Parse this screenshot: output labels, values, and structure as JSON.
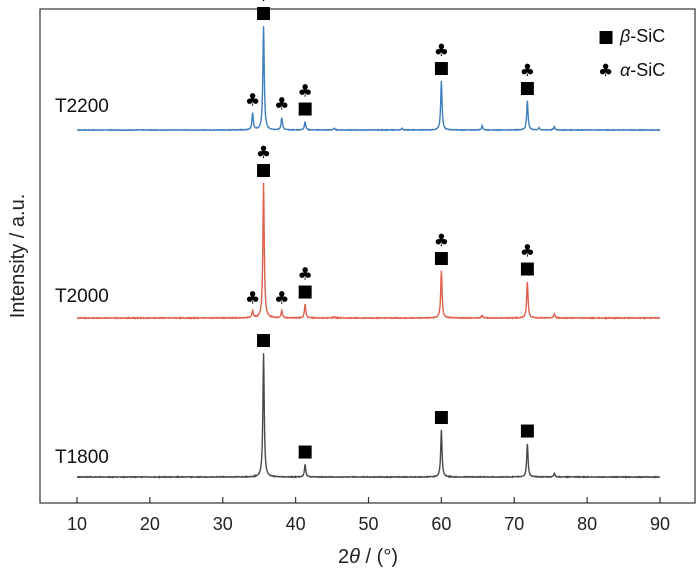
{
  "chart_data": {
    "type": "line",
    "xlabel_prefix": "2",
    "xlabel_theta": "θ",
    "xlabel_suffix": " / (°)",
    "ylabel": "Intensity / a.u.",
    "xlim": [
      10,
      90
    ],
    "xticks": [
      10,
      20,
      30,
      40,
      50,
      60,
      70,
      80,
      90
    ],
    "legend": {
      "position": "top-right",
      "entries": [
        {
          "symbol": "■",
          "greek": "β",
          "text": "-SiC"
        },
        {
          "symbol": "♣",
          "greek": "α",
          "text": "-SiC"
        }
      ]
    },
    "series": [
      {
        "name": "T2200",
        "color": "#3f7fbf",
        "peaks": [
          {
            "x": 34.1,
            "h": 0.16,
            "markers": "♣"
          },
          {
            "x": 35.6,
            "h": 1.0,
            "markers": "■♣"
          },
          {
            "x": 38.1,
            "h": 0.12,
            "markers": "♣"
          },
          {
            "x": 41.3,
            "h": 0.08,
            "markers": "■♣"
          },
          {
            "x": 45.3,
            "h": 0.015,
            "markers": ""
          },
          {
            "x": 54.6,
            "h": 0.015,
            "markers": ""
          },
          {
            "x": 60.0,
            "h": 0.47,
            "markers": "■♣"
          },
          {
            "x": 65.6,
            "h": 0.04,
            "markers": ""
          },
          {
            "x": 71.8,
            "h": 0.28,
            "markers": "■♣"
          },
          {
            "x": 73.4,
            "h": 0.02,
            "markers": ""
          },
          {
            "x": 75.5,
            "h": 0.03,
            "markers": ""
          }
        ]
      },
      {
        "name": "T2000",
        "color": "#e0604c",
        "peaks": [
          {
            "x": 34.1,
            "h": 0.05,
            "markers": "♣"
          },
          {
            "x": 35.6,
            "h": 1.0,
            "markers": "■♣"
          },
          {
            "x": 38.1,
            "h": 0.05,
            "markers": "♣"
          },
          {
            "x": 41.3,
            "h": 0.1,
            "markers": "■♣"
          },
          {
            "x": 45.3,
            "h": 0.01,
            "markers": ""
          },
          {
            "x": 60.0,
            "h": 0.35,
            "markers": "■♣"
          },
          {
            "x": 65.6,
            "h": 0.02,
            "markers": ""
          },
          {
            "x": 71.8,
            "h": 0.27,
            "markers": "■♣"
          },
          {
            "x": 75.5,
            "h": 0.03,
            "markers": ""
          }
        ]
      },
      {
        "name": "T1800",
        "color": "#4a4a4a",
        "peaks": [
          {
            "x": 35.6,
            "h": 1.0,
            "markers": "■"
          },
          {
            "x": 41.3,
            "h": 0.1,
            "markers": "■"
          },
          {
            "x": 60.0,
            "h": 0.38,
            "markers": "■"
          },
          {
            "x": 71.8,
            "h": 0.27,
            "markers": "■"
          },
          {
            "x": 75.5,
            "h": 0.03,
            "markers": ""
          }
        ]
      }
    ]
  }
}
